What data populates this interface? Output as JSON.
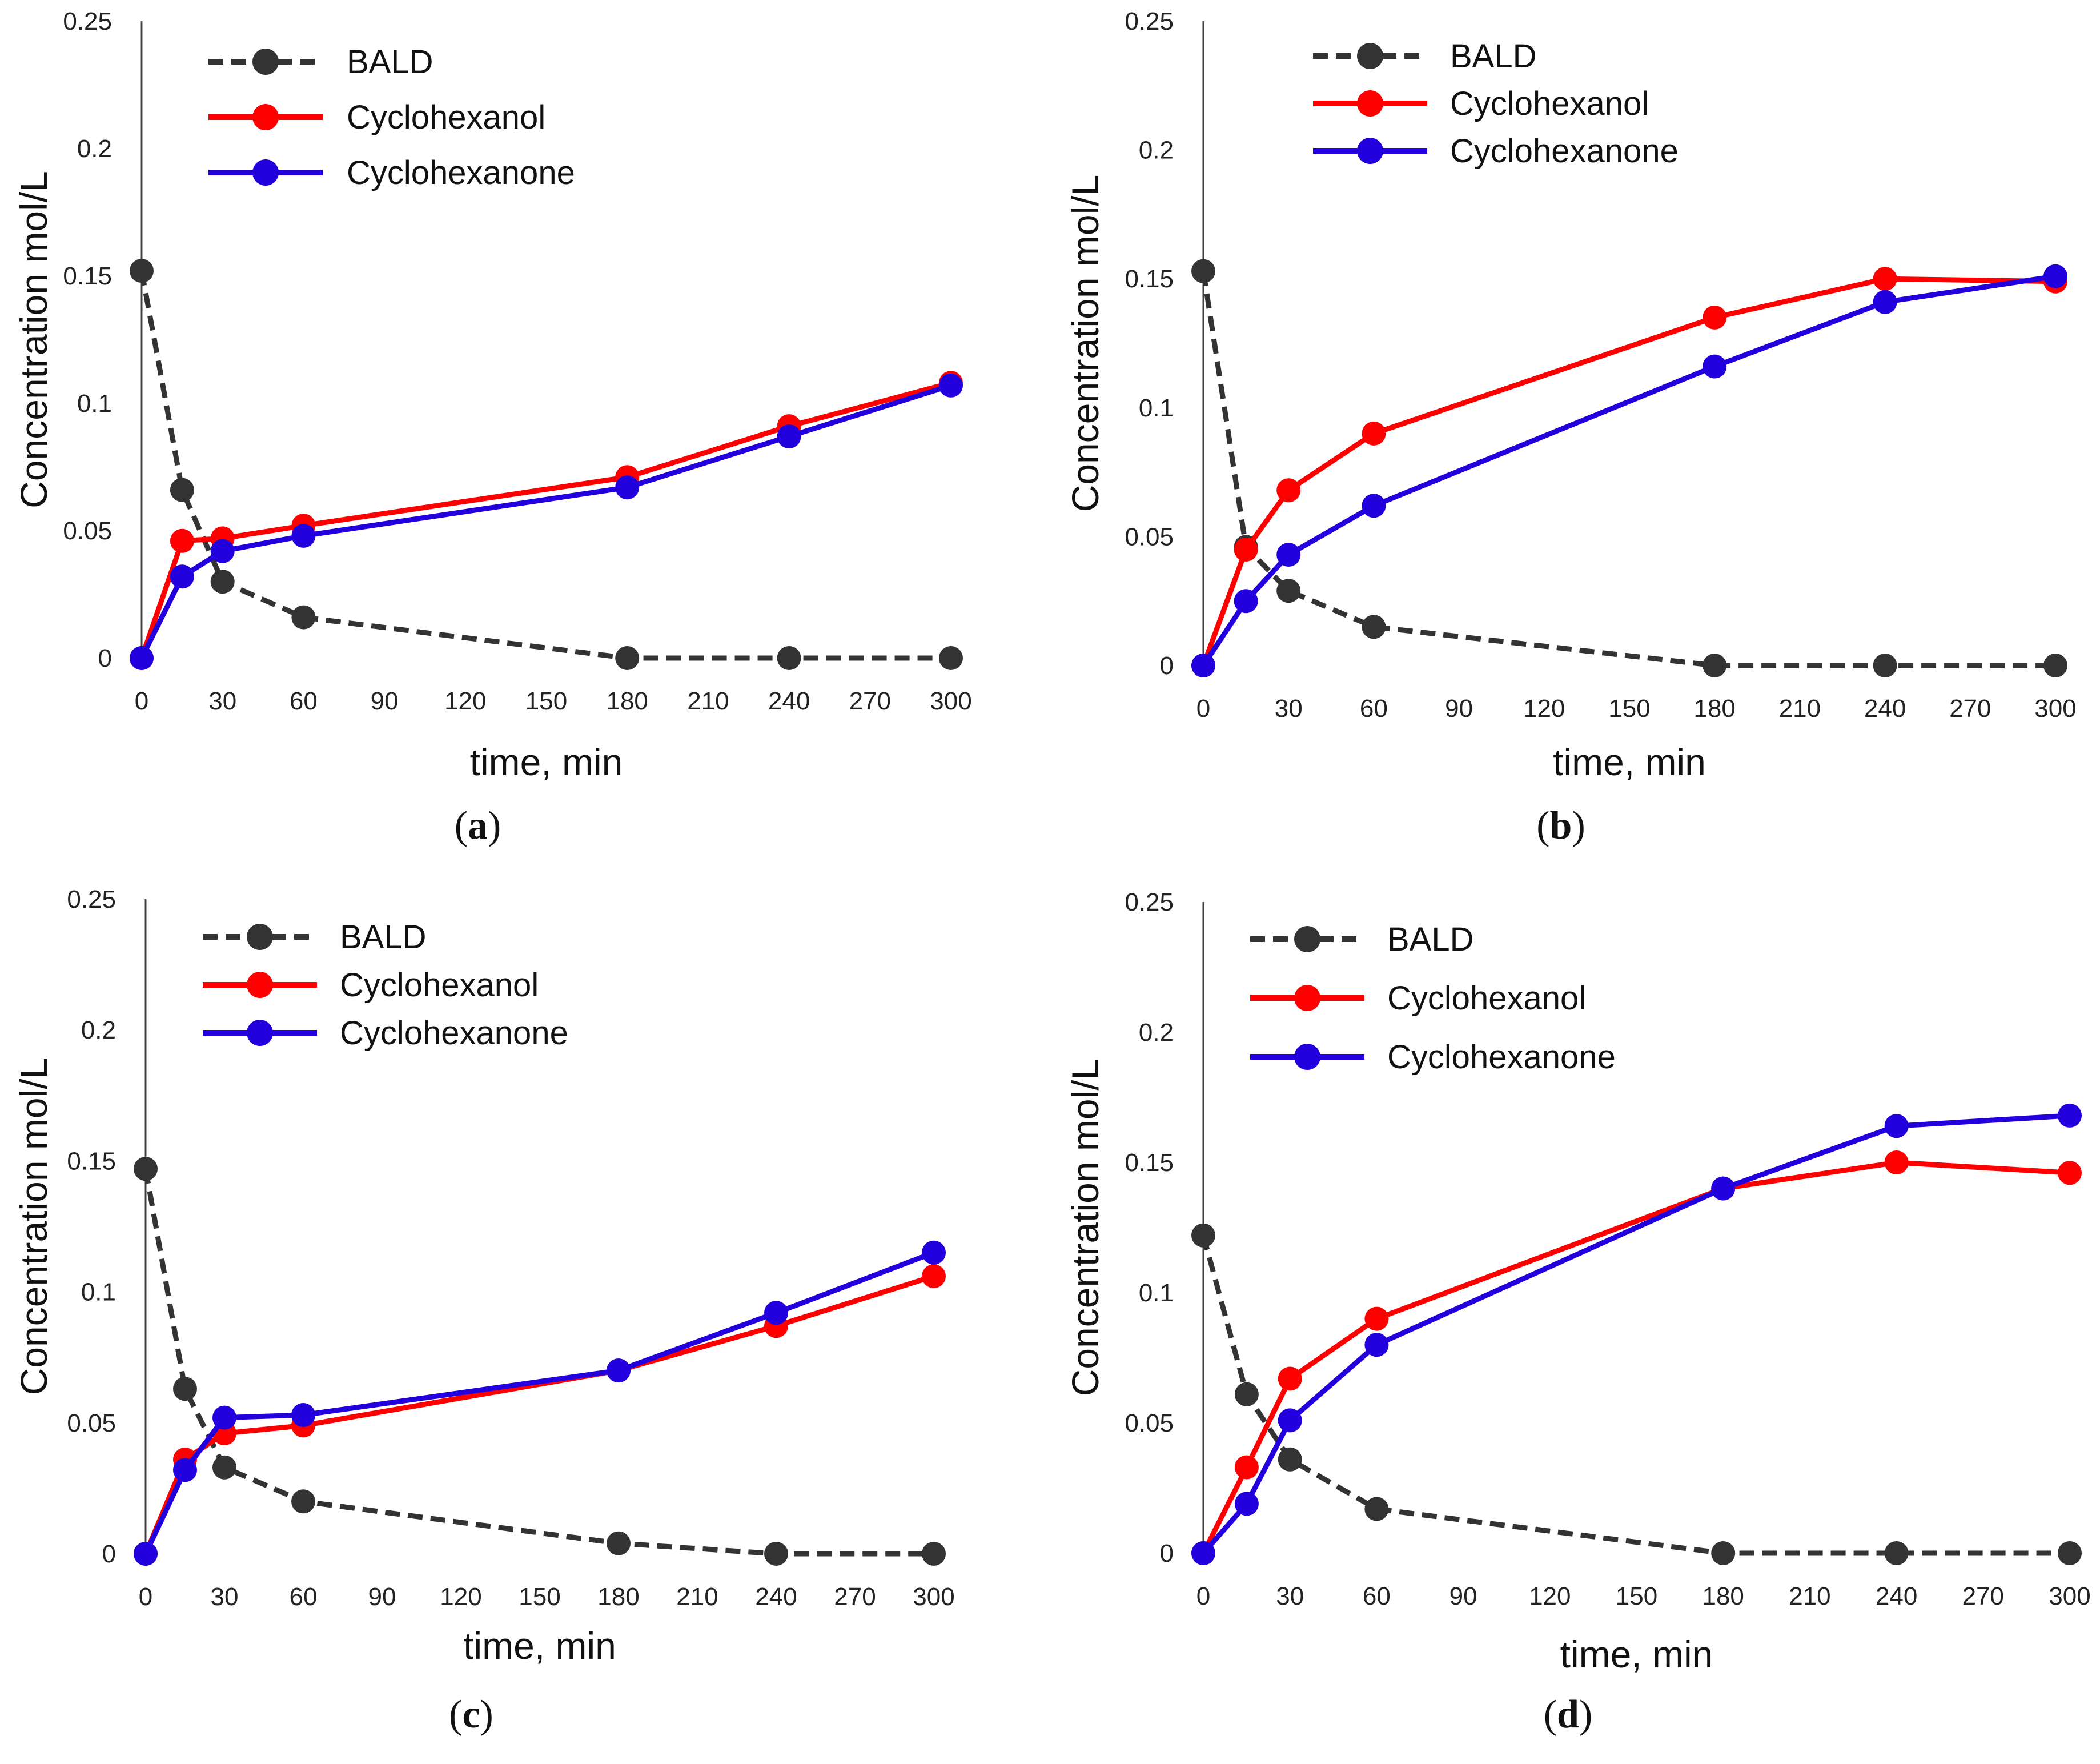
{
  "chart_data": [
    {
      "type": "line",
      "panel": "a",
      "panel_label": "a",
      "xlabel": "time, min",
      "ylabel": "Concentration mol/L",
      "xlim": [
        0,
        300
      ],
      "ylim": [
        0,
        0.25
      ],
      "xticks": [
        0,
        30,
        60,
        90,
        120,
        150,
        180,
        210,
        240,
        270,
        300
      ],
      "yticks": [
        0,
        0.05,
        0.1,
        0.15,
        0.2,
        0.25
      ],
      "ytick_labels": [
        "0",
        "0.05",
        "0.1",
        "0.15",
        "0.2",
        "0.25"
      ],
      "x": [
        0,
        15,
        30,
        60,
        180,
        240,
        300
      ],
      "series": [
        {
          "name": "BALD",
          "color": "#333333",
          "dashed": true,
          "values": [
            0.152,
            0.066,
            0.03,
            0.016,
            0.0,
            0.0,
            0.0
          ]
        },
        {
          "name": "Cyclohexanol",
          "color": "#ff0000",
          "dashed": false,
          "values": [
            0.0,
            0.046,
            0.047,
            0.052,
            0.071,
            0.091,
            0.108
          ]
        },
        {
          "name": "Cyclohexanone",
          "color": "#2200dd",
          "dashed": false,
          "values": [
            0.0,
            0.032,
            0.042,
            0.048,
            0.067,
            0.087,
            0.107
          ]
        }
      ]
    },
    {
      "type": "line",
      "panel": "b",
      "panel_label": "b",
      "xlabel": "time, min",
      "ylabel": "Concentration mol/L",
      "xlim": [
        0,
        300
      ],
      "ylim": [
        0,
        0.25
      ],
      "xticks": [
        0,
        30,
        60,
        90,
        120,
        150,
        180,
        210,
        240,
        270,
        300
      ],
      "yticks": [
        0,
        0.05,
        0.1,
        0.15,
        0.2,
        0.25
      ],
      "ytick_labels": [
        "0",
        "0.05",
        "0.1",
        "0.15",
        "0.2",
        "0.25"
      ],
      "x": [
        0,
        15,
        30,
        60,
        180,
        240,
        300
      ],
      "series": [
        {
          "name": "BALD",
          "color": "#333333",
          "dashed": true,
          "values": [
            0.153,
            0.046,
            0.029,
            0.015,
            0.0,
            0.0,
            0.0
          ]
        },
        {
          "name": "Cyclohexanol",
          "color": "#ff0000",
          "dashed": false,
          "values": [
            0.0,
            0.045,
            0.068,
            0.09,
            0.135,
            0.15,
            0.149
          ]
        },
        {
          "name": "Cyclohexanone",
          "color": "#2200dd",
          "dashed": false,
          "values": [
            0.0,
            0.025,
            0.043,
            0.062,
            0.116,
            0.141,
            0.151
          ]
        }
      ]
    },
    {
      "type": "line",
      "panel": "c",
      "panel_label": "c",
      "xlabel": "time, min",
      "ylabel": "Concentration mol/L",
      "xlim": [
        0,
        300
      ],
      "ylim": [
        0,
        0.25
      ],
      "xticks": [
        0,
        30,
        60,
        90,
        120,
        150,
        180,
        210,
        240,
        270,
        300
      ],
      "yticks": [
        0,
        0.05,
        0.1,
        0.15,
        0.2,
        0.25
      ],
      "ytick_labels": [
        "0",
        "0.05",
        "0.1",
        "0.15",
        "0.2",
        "0.25"
      ],
      "x": [
        0,
        15,
        30,
        60,
        180,
        240,
        300
      ],
      "series": [
        {
          "name": "BALD",
          "color": "#333333",
          "dashed": true,
          "values": [
            0.147,
            0.063,
            0.033,
            0.02,
            0.004,
            0.0,
            0.0
          ]
        },
        {
          "name": "Cyclohexanol",
          "color": "#ff0000",
          "dashed": false,
          "values": [
            0.0,
            0.036,
            0.046,
            0.049,
            0.07,
            0.087,
            0.106
          ]
        },
        {
          "name": "Cyclohexanone",
          "color": "#2200dd",
          "dashed": false,
          "values": [
            0.0,
            0.032,
            0.052,
            0.053,
            0.07,
            0.092,
            0.115
          ]
        }
      ]
    },
    {
      "type": "line",
      "panel": "d",
      "panel_label": "d",
      "xlabel": "time, min",
      "ylabel": "Concentration mol/L",
      "xlim": [
        0,
        300
      ],
      "ylim": [
        0,
        0.25
      ],
      "xticks": [
        0,
        30,
        60,
        90,
        120,
        150,
        180,
        210,
        240,
        270,
        300
      ],
      "yticks": [
        0,
        0.05,
        0.1,
        0.15,
        0.2,
        0.25
      ],
      "ytick_labels": [
        "0",
        "0.05",
        "0.1",
        "0.15",
        "0.2",
        "0.25"
      ],
      "x": [
        0,
        15,
        30,
        60,
        180,
        240,
        300
      ],
      "series": [
        {
          "name": "BALD",
          "color": "#333333",
          "dashed": true,
          "values": [
            0.122,
            0.061,
            0.036,
            0.017,
            0.0,
            0.0,
            0.0
          ]
        },
        {
          "name": "Cyclohexanol",
          "color": "#ff0000",
          "dashed": false,
          "values": [
            0.0,
            0.033,
            0.067,
            0.09,
            0.14,
            0.15,
            0.146
          ]
        },
        {
          "name": "Cyclohexanone",
          "color": "#2200dd",
          "dashed": false,
          "values": [
            0.0,
            0.019,
            0.051,
            0.08,
            0.14,
            0.164,
            0.168
          ]
        }
      ]
    }
  ]
}
